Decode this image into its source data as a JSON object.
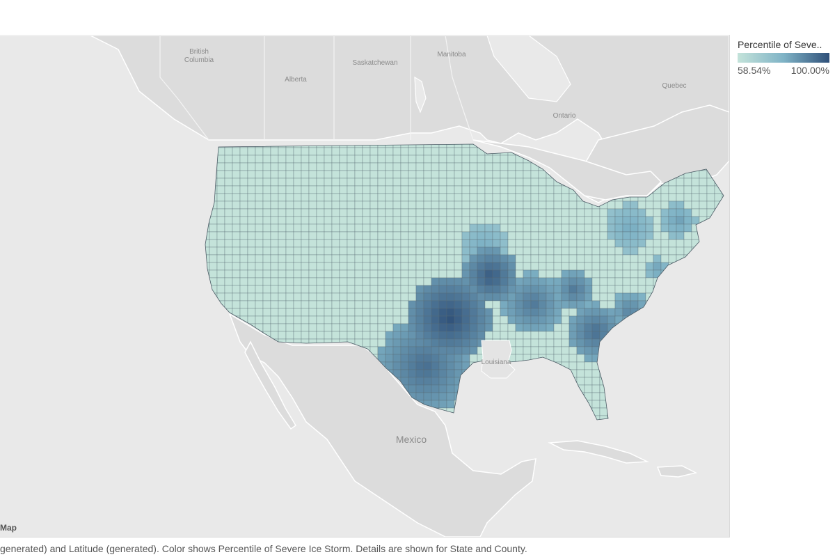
{
  "legend": {
    "title": "Percentile of Seve..",
    "min_label": "58.54%",
    "max_label": "100.00%",
    "color_low": "#c4e3da",
    "color_mid": "#7fb3c6",
    "color_high": "#2f5079"
  },
  "map": {
    "attribution": "Map",
    "labels": {
      "british_columbia_1": "British",
      "british_columbia_2": "Columbia",
      "alberta": "Alberta",
      "saskatchewan": "Saskatchewan",
      "manitoba": "Manitoba",
      "ontario": "Ontario",
      "quebec": "Quebec",
      "mexico": "Mexico",
      "louisiana": "Louisiana"
    }
  },
  "caption": "generated) and Latitude (generated).  Color shows Percentile of Severe Ice Storm.  Details are shown for State and County."
}
